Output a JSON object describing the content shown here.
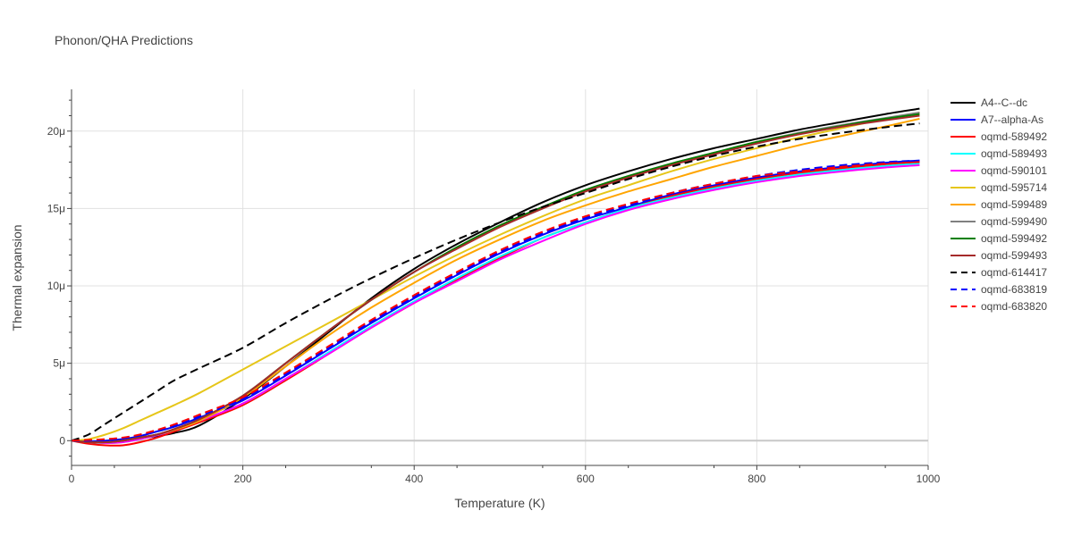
{
  "chart_data": {
    "type": "line",
    "title": "Phonon/QHA Predictions",
    "xlabel": "Temperature (K)",
    "ylabel": "Thermal expansion",
    "xlim": [
      0,
      1000
    ],
    "ylim": [
      -1.6e-06,
      2.27e-05
    ],
    "x_ticks": [
      0,
      200,
      400,
      600,
      800,
      1000
    ],
    "x_tick_labels": [
      "0",
      "200",
      "400",
      "600",
      "800",
      "1000"
    ],
    "y_ticks": [
      0,
      5e-06,
      1e-05,
      1.5e-05,
      2e-05
    ],
    "y_tick_labels": [
      "0",
      "5μ",
      "10μ",
      "15μ",
      "20μ"
    ],
    "legend_position": "right",
    "x": [
      0,
      20,
      40,
      60,
      80,
      100,
      120,
      150,
      200,
      250,
      300,
      350,
      400,
      450,
      500,
      550,
      600,
      650,
      700,
      750,
      800,
      850,
      900,
      950,
      990
    ],
    "series": [
      {
        "name": "A4--C--dc",
        "color": "#000000",
        "dash": "solid",
        "values": [
          0,
          -1e-07,
          -1e-07,
          0,
          1.5e-07,
          3e-07,
          5e-07,
          1e-06,
          2.7e-06,
          4.8e-06,
          7e-06,
          9.2e-06,
          1.11e-05,
          1.27e-05,
          1.41e-05,
          1.54e-05,
          1.65e-05,
          1.74e-05,
          1.82e-05,
          1.89e-05,
          1.95e-05,
          2.01e-05,
          2.06e-05,
          2.11e-05,
          2.145e-05
        ]
      },
      {
        "name": "A7--alpha-As",
        "color": "#0000ff",
        "dash": "solid",
        "values": [
          0,
          -5e-08,
          0,
          1e-07,
          3e-07,
          6e-07,
          9e-07,
          1.5e-06,
          2.6e-06,
          4.2e-06,
          5.9e-06,
          7.6e-06,
          9.2e-06,
          1.07e-05,
          1.21e-05,
          1.33e-05,
          1.43e-05,
          1.51e-05,
          1.59e-05,
          1.65e-05,
          1.7e-05,
          1.74e-05,
          1.77e-05,
          1.795e-05,
          1.81e-05
        ]
      },
      {
        "name": "oqmd-589492",
        "color": "#ff0000",
        "dash": "solid",
        "values": [
          0,
          -2e-07,
          -3e-07,
          -3e-07,
          -1e-07,
          2e-07,
          6e-07,
          1.2e-06,
          2.3e-06,
          3.9e-06,
          5.6e-06,
          7.3e-06,
          8.9e-06,
          1.04e-05,
          1.18e-05,
          1.31e-05,
          1.41e-05,
          1.5e-05,
          1.58e-05,
          1.64e-05,
          1.69e-05,
          1.73e-05,
          1.76e-05,
          1.785e-05,
          1.8e-05
        ]
      },
      {
        "name": "oqmd-589493",
        "color": "#00ffff",
        "dash": "solid",
        "values": [
          0,
          -1e-07,
          -1.5e-07,
          -1e-07,
          1e-07,
          3.5e-07,
          7e-07,
          1.3e-06,
          2.4e-06,
          4e-06,
          5.7e-06,
          7.4e-06,
          9e-06,
          1.05e-05,
          1.19e-05,
          1.31e-05,
          1.41e-05,
          1.5e-05,
          1.57e-05,
          1.63e-05,
          1.68e-05,
          1.72e-05,
          1.75e-05,
          1.775e-05,
          1.79e-05
        ]
      },
      {
        "name": "oqmd-590101",
        "color": "#ff00ff",
        "dash": "solid",
        "values": [
          0,
          -1e-07,
          -1.5e-07,
          -1e-07,
          1e-07,
          3.5e-07,
          7e-07,
          1.3e-06,
          2.4e-06,
          4e-06,
          5.6e-06,
          7.3e-06,
          8.9e-06,
          1.03e-05,
          1.17e-05,
          1.29e-05,
          1.4e-05,
          1.49e-05,
          1.56e-05,
          1.62e-05,
          1.67e-05,
          1.71e-05,
          1.74e-05,
          1.765e-05,
          1.78e-05
        ]
      },
      {
        "name": "oqmd-595714",
        "color": "#e6c619",
        "dash": "solid",
        "values": [
          0,
          1e-07,
          4e-07,
          8e-07,
          1.3e-06,
          1.8e-06,
          2.3e-06,
          3.1e-06,
          4.6e-06,
          6.1e-06,
          7.6e-06,
          9.1e-06,
          1.06e-05,
          1.2e-05,
          1.33e-05,
          1.45e-05,
          1.56e-05,
          1.65e-05,
          1.74e-05,
          1.82e-05,
          1.89e-05,
          1.96e-05,
          2.02e-05,
          2.08e-05,
          2.12e-05
        ]
      },
      {
        "name": "oqmd-599489",
        "color": "#ffa500",
        "dash": "solid",
        "values": [
          0,
          -1e-07,
          -1e-07,
          0,
          2e-07,
          4e-07,
          7e-07,
          1.3e-06,
          2.8e-06,
          4.8e-06,
          6.8e-06,
          8.6e-06,
          1.02e-05,
          1.17e-05,
          1.3e-05,
          1.42e-05,
          1.52e-05,
          1.61e-05,
          1.69e-05,
          1.77e-05,
          1.84e-05,
          1.91e-05,
          1.97e-05,
          2.03e-05,
          2.08e-05
        ]
      },
      {
        "name": "oqmd-599490",
        "color": "#808080",
        "dash": "solid",
        "values": [
          0,
          -1e-07,
          -1e-07,
          0,
          2e-07,
          4e-07,
          7.5e-07,
          1.4e-06,
          2.9e-06,
          5e-06,
          7.1e-06,
          9.1e-06,
          1.09e-05,
          1.25e-05,
          1.39e-05,
          1.51e-05,
          1.62e-05,
          1.71e-05,
          1.79e-05,
          1.86e-05,
          1.93e-05,
          1.99e-05,
          2.04e-05,
          2.085e-05,
          2.12e-05
        ]
      },
      {
        "name": "oqmd-599492",
        "color": "#008000",
        "dash": "solid",
        "values": [
          0,
          -1e-07,
          -1e-07,
          0,
          2e-07,
          4e-07,
          7.5e-07,
          1.4e-06,
          2.9e-06,
          5e-06,
          7.1e-06,
          9.1e-06,
          1.09e-05,
          1.25e-05,
          1.39e-05,
          1.51e-05,
          1.62e-05,
          1.71e-05,
          1.79e-05,
          1.86e-05,
          1.93e-05,
          1.985e-05,
          2.035e-05,
          2.08e-05,
          2.11e-05
        ]
      },
      {
        "name": "oqmd-599493",
        "color": "#a52a2a",
        "dash": "solid",
        "values": [
          0,
          -1e-07,
          -1e-07,
          0,
          2e-07,
          4e-07,
          7.5e-07,
          1.4e-06,
          2.9e-06,
          5e-06,
          7.1e-06,
          9.1e-06,
          1.09e-05,
          1.24e-05,
          1.38e-05,
          1.5e-05,
          1.61e-05,
          1.7e-05,
          1.78e-05,
          1.85e-05,
          1.92e-05,
          1.98e-05,
          2.03e-05,
          2.07e-05,
          2.1e-05
        ]
      },
      {
        "name": "oqmd-614417",
        "color": "#000000",
        "dash": "dash",
        "values": [
          0,
          4e-07,
          1.1e-06,
          1.8e-06,
          2.5e-06,
          3.2e-06,
          3.9e-06,
          4.7e-06,
          6e-06,
          7.6e-06,
          9.1e-06,
          1.05e-05,
          1.18e-05,
          1.3e-05,
          1.41e-05,
          1.51e-05,
          1.6e-05,
          1.69e-05,
          1.77e-05,
          1.84e-05,
          1.9e-05,
          1.95e-05,
          1.99e-05,
          2.025e-05,
          2.05e-05
        ]
      },
      {
        "name": "oqmd-683819",
        "color": "#0000ff",
        "dash": "dash",
        "values": [
          0,
          0,
          5e-08,
          1.5e-07,
          3.5e-07,
          6.5e-07,
          1e-06,
          1.6e-06,
          2.7e-06,
          4.3e-06,
          6e-06,
          7.7e-06,
          9.3e-06,
          1.08e-05,
          1.22e-05,
          1.34e-05,
          1.44e-05,
          1.52e-05,
          1.6e-05,
          1.66e-05,
          1.71e-05,
          1.75e-05,
          1.78e-05,
          1.8e-05,
          1.81e-05
        ]
      },
      {
        "name": "oqmd-683820",
        "color": "#ff0000",
        "dash": "dash",
        "values": [
          0,
          5e-08,
          1e-07,
          2e-07,
          4e-07,
          7e-07,
          1.05e-06,
          1.7e-06,
          2.8e-06,
          4.4e-06,
          6.1e-06,
          7.8e-06,
          9.4e-06,
          1.09e-05,
          1.23e-05,
          1.35e-05,
          1.45e-05,
          1.53e-05,
          1.6e-05,
          1.66e-05,
          1.71e-05,
          1.74e-05,
          1.77e-05,
          1.79e-05,
          1.8e-05
        ]
      }
    ]
  }
}
